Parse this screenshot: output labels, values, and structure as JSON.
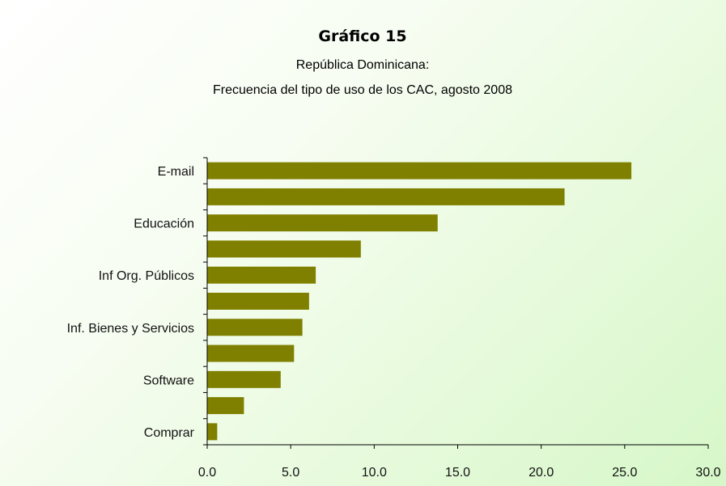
{
  "chart_data": {
    "type": "bar",
    "orientation": "horizontal",
    "title": "Gráfico 15",
    "subtitle_lines": [
      "República Dominicana:",
      "Frecuencia del tipo de uso de los CAC, agosto 2008"
    ],
    "categories": [
      "E-mail",
      "",
      "Educación",
      "",
      "Inf Org. Públicos",
      "",
      "Inf. Bienes y Servicios",
      "",
      "Software",
      "",
      "Comprar"
    ],
    "values": [
      25.4,
      21.4,
      13.8,
      9.2,
      6.5,
      6.1,
      5.7,
      5.2,
      4.4,
      2.2,
      0.6
    ],
    "xlim": [
      0,
      30
    ],
    "xticks": [
      "0.0",
      "5.0",
      "10.0",
      "15.0",
      "20.0",
      "25.0",
      "30.0"
    ],
    "xtick_values": [
      0,
      5,
      10,
      15,
      20,
      25,
      30
    ],
    "bar_color": "#808000",
    "grid": false
  }
}
